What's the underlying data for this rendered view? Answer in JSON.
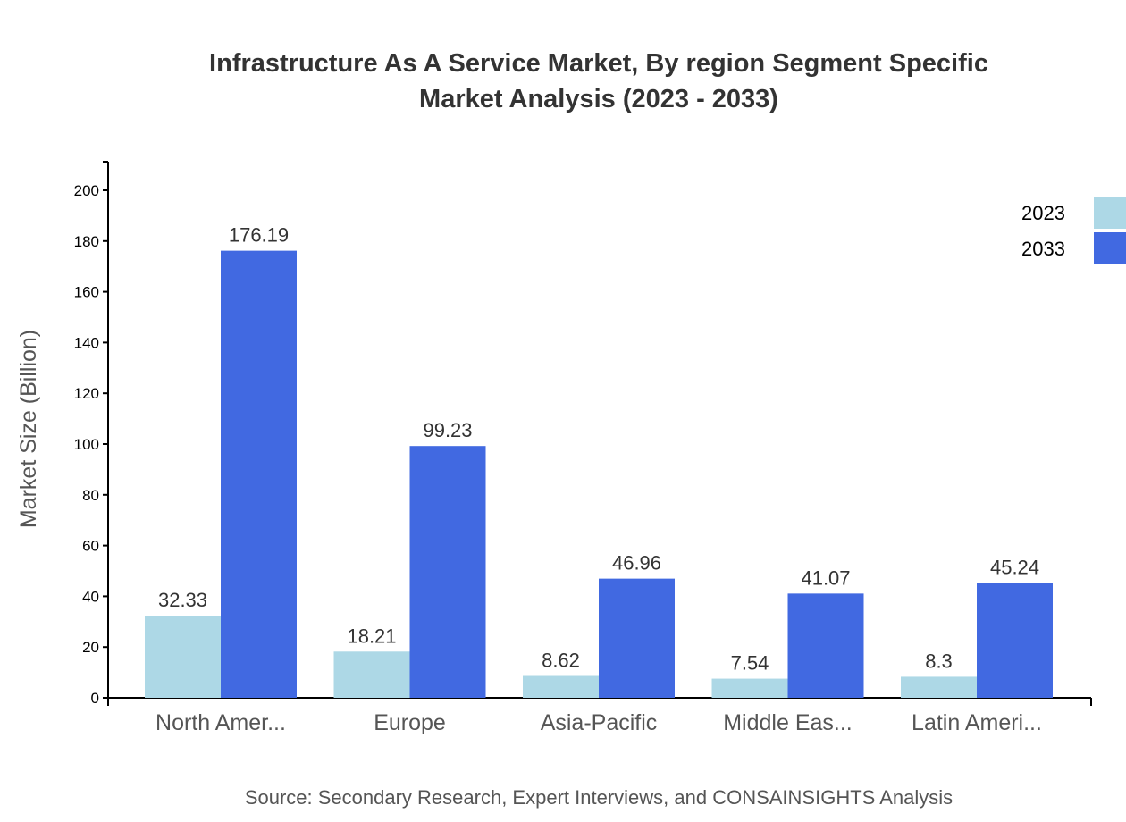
{
  "chart_data": {
    "type": "bar",
    "title": [
      "Infrastructure As A Service Market, By region Segment Specific",
      "Market Analysis (2023 - 2033)"
    ],
    "xlabel": "",
    "ylabel": "Market Size (Billion)",
    "ylim": [
      0,
      210
    ],
    "yticks": [
      0,
      20,
      40,
      60,
      80,
      100,
      120,
      140,
      160,
      180,
      200
    ],
    "categories": [
      "North Amer...",
      "Europe",
      "Asia-Pacific",
      "Middle Eas...",
      "Latin Ameri..."
    ],
    "series": [
      {
        "name": "2023",
        "color": "#add8e6",
        "values": [
          32.33,
          18.21,
          8.62,
          7.54,
          8.3
        ]
      },
      {
        "name": "2033",
        "color": "#4169e1",
        "values": [
          176.19,
          99.23,
          46.96,
          41.07,
          45.24
        ]
      }
    ],
    "legend_position": "top-right",
    "grid": false,
    "source": "Source: Secondary Research, Expert Interviews, and CONSAINSIGHTS Analysis"
  }
}
